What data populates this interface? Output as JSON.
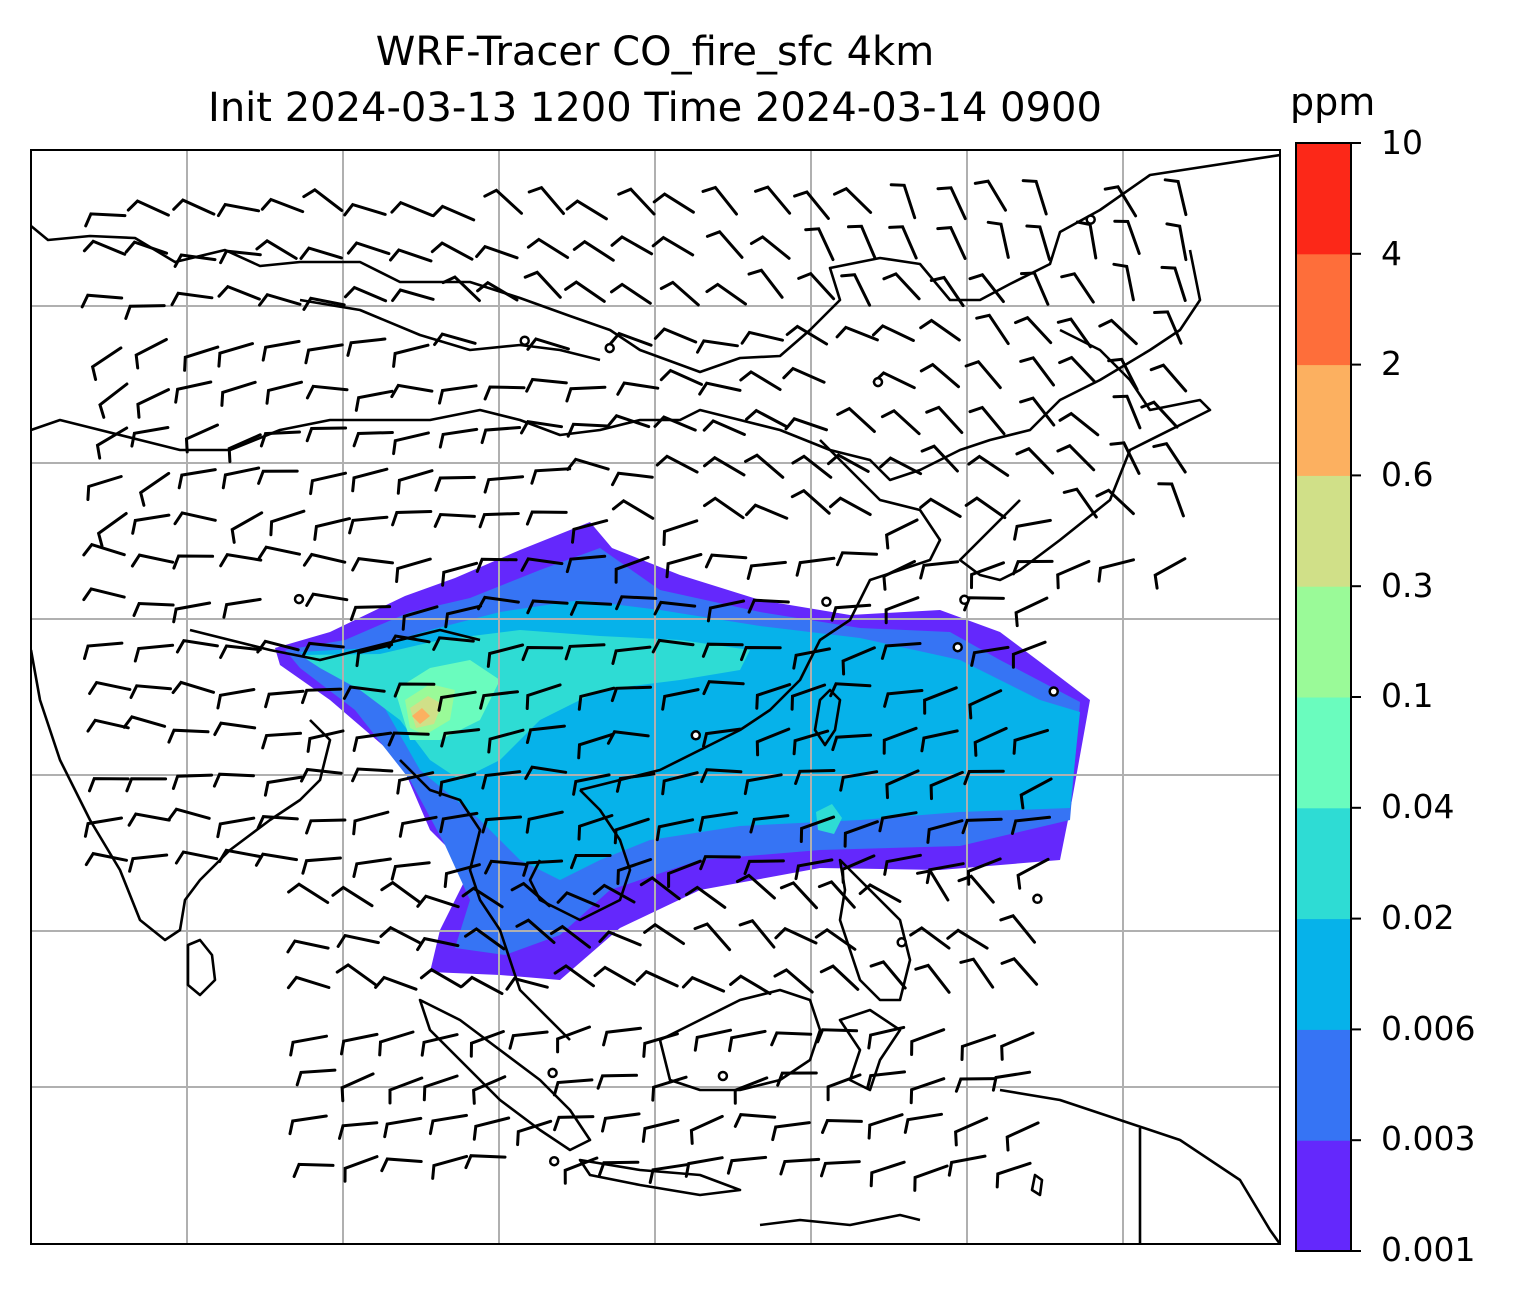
{
  "title": {
    "line1": "WRF-Tracer CO_fire_sfc 4km",
    "line2": "Init 2024-03-13 1200 Time 2024-03-14 0900"
  },
  "colorbar": {
    "unit": "ppm",
    "levels": [
      "0.001",
      "0.003",
      "0.006",
      "0.02",
      "0.04",
      "0.1",
      "0.3",
      "0.6",
      "2",
      "4",
      "10"
    ],
    "colors": [
      "#6428fc",
      "#3674f4",
      "#06b2ea",
      "#2edcd4",
      "#6afcbe",
      "#9afa98",
      "#d0e088",
      "#fcb060",
      "#fe6e3a",
      "#fc2818"
    ]
  },
  "map": {
    "field": "CO_fire_sfc",
    "gridlines": true,
    "wind_barbs": true,
    "background": "#ffffff",
    "coastline_color": "#000000",
    "grid_color": "#b0b0b0"
  }
}
